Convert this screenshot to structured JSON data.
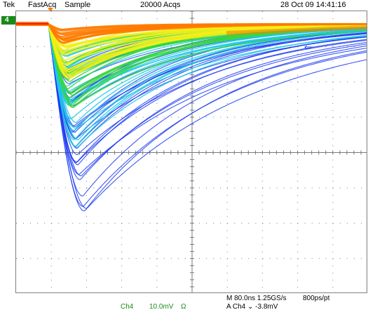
{
  "status": {
    "brand": "Tek",
    "mode": "FastAcq",
    "acq_mode": "Sample",
    "acq_count": "20000 Acqs",
    "datetime": "28 Oct 09 14:41:16"
  },
  "channel_marker": {
    "label": "4"
  },
  "bottom": {
    "channel": "Ch4",
    "volts_div": "10.0mV",
    "impedance_symbol": "Ω",
    "timebase": "M 80.0ns 1.25GS/s",
    "record": "800ps/pt",
    "trigger": "A  Ch4  ⌄  -3.8mV"
  },
  "icons": {
    "trigger_position": "trigger-position-arrow",
    "trigger_level": "trigger-level-arrow",
    "ch4_ground": "channel-4-ground-marker"
  },
  "colors": {
    "grid": "#7a7a7a",
    "channel": "#1a8a1a",
    "persistence_low": "#1c3cf0",
    "persistence_mid1": "#1ec8e8",
    "persistence_mid2": "#38d838",
    "persistence_mid3": "#f2ee18",
    "persistence_high": "#ff7a00",
    "persistence_peak": "#e81818"
  },
  "scope_data": {
    "type": "persistence waveform",
    "divisions": {
      "x": 10,
      "y": 8
    },
    "trigger_level_mV": -3.8,
    "timebase_ns_per_div": 80,
    "volts_per_div_mV": 10
  }
}
